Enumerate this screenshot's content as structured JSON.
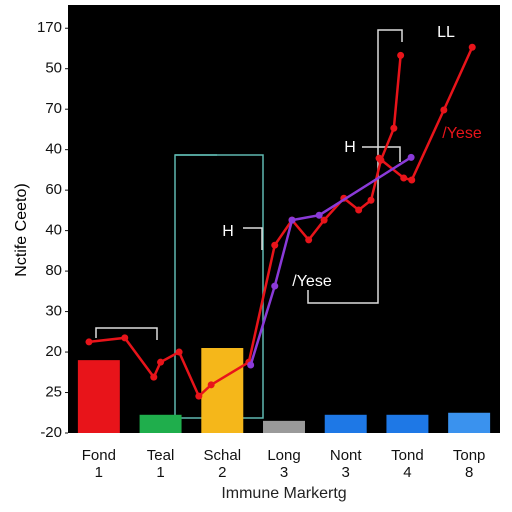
{
  "chart_data": {
    "type": "bar",
    "y_label": "Nctife Ceeto)",
    "x_label": "Immune Markertg",
    "categories": [
      [
        "Fond",
        "1"
      ],
      [
        "Teal",
        "1"
      ],
      [
        "Schal",
        "2"
      ],
      [
        "Long",
        "3"
      ],
      [
        "Nont",
        "3"
      ],
      [
        "Tond",
        "4"
      ],
      [
        "Tonp",
        "8"
      ]
    ],
    "values": [
      1.8,
      0.45,
      2.1,
      0.3,
      0.45,
      0.45,
      0.5
    ],
    "colors": [
      "#e8141a",
      "#1fae4c",
      "#f5b71a",
      "#9a9a9a",
      "#1e78e6",
      "#1e78e6",
      "#3a92ee"
    ],
    "xlim": [
      -0.5,
      6.5
    ],
    "ylim": [
      0,
      10.5
    ],
    "yticks": [
      {
        "value": 0,
        "label": "-20"
      },
      {
        "value": 1,
        "label": "25"
      },
      {
        "value": 2,
        "label": "20"
      },
      {
        "value": 3,
        "label": "30"
      },
      {
        "value": 4,
        "label": "80"
      },
      {
        "value": 5,
        "label": "40"
      },
      {
        "value": 6,
        "label": "60"
      },
      {
        "value": 7,
        "label": "40"
      },
      {
        "value": 8,
        "label": "70"
      },
      {
        "value": 9,
        "label": "50"
      },
      {
        "value": 10,
        "label": "170"
      }
    ],
    "lines": [
      {
        "color": "#e8141a",
        "x": [
          -0.16,
          0.42,
          0.89,
          1.0,
          1.3,
          1.62,
          1.82,
          2.43,
          2.85,
          3.13,
          3.4,
          3.65,
          3.97,
          4.21,
          4.41,
          4.57,
          4.78,
          4.89
        ],
        "values": [
          2.25,
          2.35,
          1.38,
          1.75,
          2.0,
          0.91,
          1.19,
          1.75,
          4.64,
          5.26,
          4.77,
          5.26,
          5.8,
          5.51,
          5.75,
          6.74,
          7.53,
          9.33
        ]
      },
      {
        "color": "#e8141a",
        "x": [
          4.54,
          4.94,
          5.07,
          5.59,
          6.05
        ],
        "values": [
          6.79,
          6.3,
          6.25,
          7.98,
          9.53
        ]
      },
      {
        "color": "#8a3ad8",
        "x": [
          2.46,
          2.85,
          3.13,
          3.57,
          5.06
        ],
        "values": [
          1.68,
          3.63,
          5.26,
          5.38,
          6.81
        ]
      }
    ],
    "annotations": [
      "H",
      "H",
      "LL",
      "/Yese",
      "/Yese"
    ]
  }
}
